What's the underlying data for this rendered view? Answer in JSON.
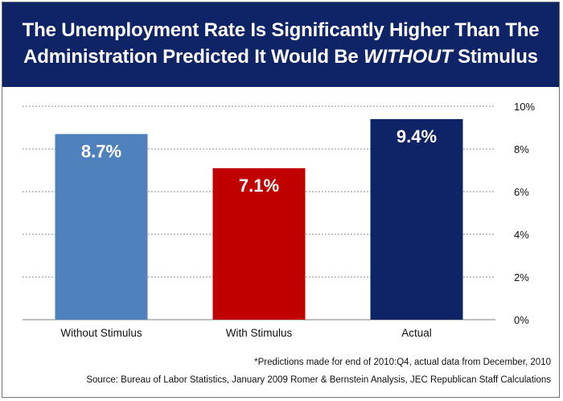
{
  "title": {
    "line1": "The Unemployment Rate Is Significantly Higher Than The",
    "line2_before": "Administration Predicted It Would Be ",
    "line2_emphasis": "WITHOUT",
    "line2_after": " Stimulus"
  },
  "chart_data": {
    "type": "bar",
    "categories": [
      "Without Stimulus",
      "With Stimulus",
      "Actual"
    ],
    "values": [
      8.7,
      7.1,
      9.4
    ],
    "data_labels": [
      "8.7%",
      "7.1%",
      "9.4%"
    ],
    "bar_colors": [
      "#4f81bd",
      "#c00000",
      "#0f2467"
    ],
    "title": "The Unemployment Rate Is Significantly Higher Than The Administration Predicted It Would Be WITHOUT Stimulus",
    "xlabel": "",
    "ylabel": "",
    "ylim": [
      0,
      10
    ],
    "y_ticks": [
      0,
      2,
      4,
      6,
      8,
      10
    ],
    "y_tick_labels": [
      "0%",
      "2%",
      "4%",
      "6%",
      "8%",
      "10%"
    ],
    "y_axis_side": "right",
    "grid": "horizontal dotted",
    "legend": "none"
  },
  "footnote": "*Predictions made for end of 2010:Q4, actual data from December, 2010",
  "source": "Source:  Bureau of Labor Statistics,  January 2009 Romer & Bernstein Analysis, JEC Republican Staff Calculations",
  "colors": {
    "title_band": "#0f2467",
    "title_text": "#ffffff",
    "grid": "#8c8c8c"
  }
}
